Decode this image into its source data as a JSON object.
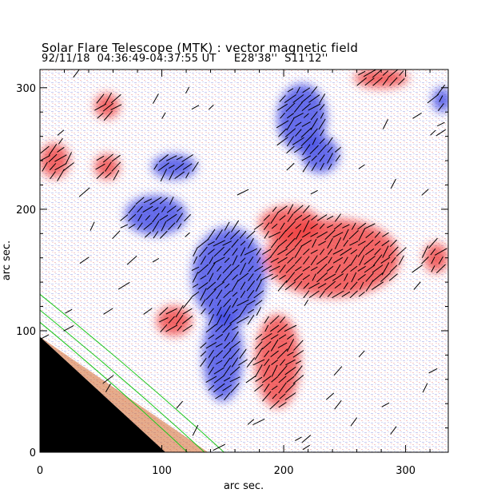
{
  "chart_data": {
    "type": "heatmap",
    "title": "Solar Flare Telescope (MTK) : vector magnetic field",
    "subtitle": "92/11/18  04:36:49-04:37:55 UT     E28'38''  S11'12''",
    "xlabel": "arc sec.",
    "ylabel": "arc sec.",
    "xlim": [
      0,
      335
    ],
    "ylim": [
      0,
      315
    ],
    "x_ticks": [
      0,
      100,
      200,
      300
    ],
    "y_ticks": [
      0,
      100,
      200,
      300
    ],
    "colors": {
      "positive": "#f03c3c",
      "negative": "#3c46e6",
      "vector": "#000000",
      "limb_contour": "#1ec81e",
      "off_limb": "#000000"
    },
    "positive_regions": [
      {
        "name": "central-positive",
        "cx": 240,
        "cy": 160,
        "rx": 55,
        "ry": 32
      },
      {
        "name": "upper-positive-lobe",
        "cx": 205,
        "cy": 188,
        "rx": 25,
        "ry": 14
      },
      {
        "name": "lower-tail-positive",
        "cx": 195,
        "cy": 75,
        "rx": 18,
        "ry": 38
      },
      {
        "name": "small-positive-west",
        "cx": 110,
        "cy": 108,
        "rx": 14,
        "ry": 12
      },
      {
        "name": "top-right-positive",
        "cx": 280,
        "cy": 308,
        "rx": 22,
        "ry": 8
      },
      {
        "name": "left-positive-1",
        "cx": 12,
        "cy": 240,
        "rx": 12,
        "ry": 14
      },
      {
        "name": "left-positive-2",
        "cx": 55,
        "cy": 285,
        "rx": 10,
        "ry": 10
      },
      {
        "name": "left-positive-3",
        "cx": 55,
        "cy": 235,
        "rx": 10,
        "ry": 10
      },
      {
        "name": "right-edge-positive",
        "cx": 325,
        "cy": 160,
        "rx": 10,
        "ry": 12
      }
    ],
    "negative_regions": [
      {
        "name": "central-negative",
        "cx": 155,
        "cy": 145,
        "rx": 30,
        "ry": 40
      },
      {
        "name": "upper-left-negative",
        "cx": 95,
        "cy": 195,
        "rx": 25,
        "ry": 16
      },
      {
        "name": "lower-negative-tail",
        "cx": 150,
        "cy": 80,
        "rx": 16,
        "ry": 38
      },
      {
        "name": "north-negative",
        "cx": 215,
        "cy": 275,
        "rx": 20,
        "ry": 28
      },
      {
        "name": "north-negative-2",
        "cx": 230,
        "cy": 245,
        "rx": 15,
        "ry": 15
      },
      {
        "name": "mid-negative",
        "cx": 110,
        "cy": 235,
        "rx": 18,
        "ry": 10
      },
      {
        "name": "right-edge-negative",
        "cx": 330,
        "cy": 290,
        "rx": 8,
        "ry": 10
      }
    ],
    "limb": {
      "x_intercept": 103,
      "y_intercept": 95
    }
  }
}
